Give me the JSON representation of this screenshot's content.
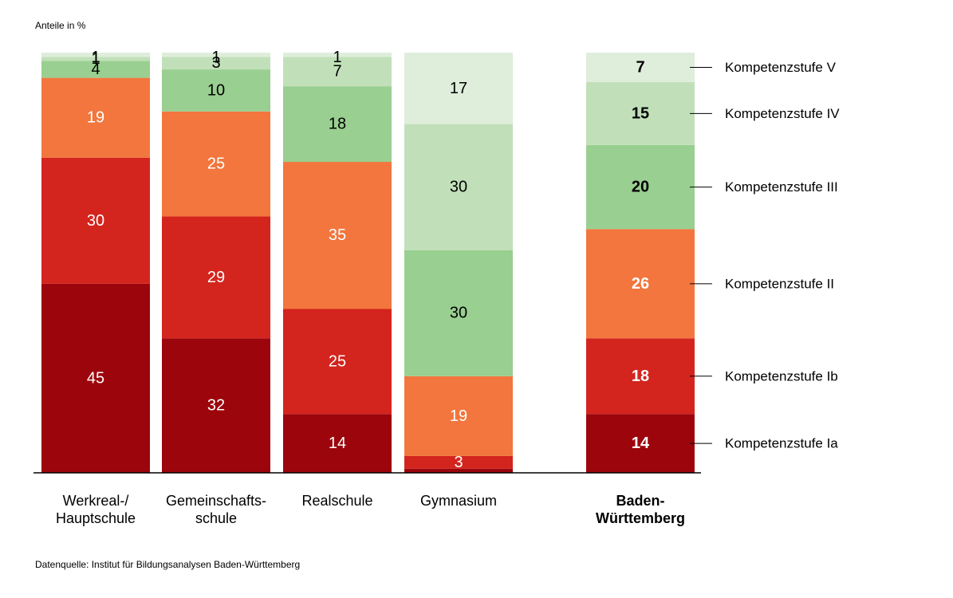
{
  "chart_data": {
    "type": "bar",
    "stacked": true,
    "normalized_percent": true,
    "unit_label": "Anteile in %",
    "source": "Datenquelle: Institut für Bildungsanalysen Baden-Württemberg",
    "categories": [
      {
        "label": [
          "Werkreal-/",
          "Hauptschule"
        ],
        "bold": false
      },
      {
        "label": [
          "Gemeinschafts-",
          "schule"
        ],
        "bold": false
      },
      {
        "label": [
          "Realschule"
        ],
        "bold": false
      },
      {
        "label": [
          "Gymnasium"
        ],
        "bold": false
      },
      {
        "label": [
          "Baden-",
          "Württemberg"
        ],
        "bold": true
      }
    ],
    "series": [
      {
        "name": "Kompetenzstufe Ia",
        "color": "#9c050c",
        "text_color": "#ffffff",
        "values": [
          45,
          32,
          14,
          1,
          14
        ]
      },
      {
        "name": "Kompetenzstufe Ib",
        "color": "#d4241e",
        "text_color": "#ffffff",
        "values": [
          30,
          29,
          25,
          3,
          18
        ]
      },
      {
        "name": "Kompetenzstufe II",
        "color": "#f2763d",
        "text_color": "#ffffff",
        "values": [
          19,
          25,
          35,
          19,
          26
        ]
      },
      {
        "name": "Kompetenzstufe III",
        "color": "#99cf90",
        "text_color": "#000000",
        "values": [
          4,
          10,
          18,
          30,
          20
        ]
      },
      {
        "name": "Kompetenzstufe IV",
        "color": "#c1e0b9",
        "text_color": "#000000",
        "values": [
          1,
          3,
          7,
          30,
          15
        ]
      },
      {
        "name": "Kompetenzstufe V",
        "color": "#deeedb",
        "text_color": "#000000",
        "values": [
          1,
          1,
          1,
          17,
          7
        ]
      }
    ],
    "value_labels": [
      [
        "45",
        "30",
        "19",
        "4",
        "1",
        "1"
      ],
      [
        "32",
        "29",
        "25",
        "10",
        "3",
        "1"
      ],
      [
        "14",
        "25",
        "35",
        "18",
        "7",
        "1"
      ],
      [
        "",
        "3",
        "19",
        "30",
        "30",
        "17"
      ],
      [
        "14",
        "18",
        "26",
        "20",
        "15",
        "7"
      ]
    ],
    "legend_position": "right of last bar",
    "grid": false
  }
}
